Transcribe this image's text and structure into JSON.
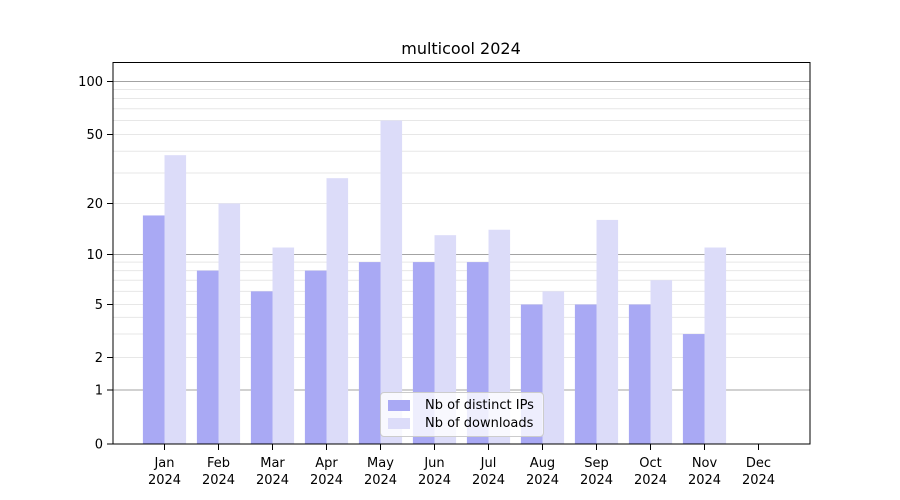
{
  "figure": {
    "title": "multicool 2024"
  },
  "chart_data": {
    "type": "bar",
    "title": "multicool 2024",
    "yscale": "symlog",
    "categories": [
      "Jan 2024",
      "Feb 2024",
      "Mar 2024",
      "Apr 2024",
      "May 2024",
      "Jun 2024",
      "Jul 2024",
      "Aug 2024",
      "Sep 2024",
      "Oct 2024",
      "Nov 2024",
      "Dec 2024"
    ],
    "series": [
      {
        "name": "Nb of distinct IPs",
        "color": "#a9a9f4",
        "values": [
          17,
          8,
          6,
          8,
          9,
          9,
          9,
          5,
          5,
          5,
          3,
          0
        ]
      },
      {
        "name": "Nb of downloads",
        "color": "#dcdcf9",
        "values": [
          38,
          20,
          11,
          28,
          60,
          13,
          14,
          6,
          16,
          7,
          11,
          0
        ]
      }
    ],
    "yticks_labeled": [
      0,
      1,
      2,
      5,
      10,
      20,
      50,
      100
    ],
    "yticks_minor": [
      3,
      4,
      6,
      7,
      8,
      9,
      30,
      40,
      60,
      70,
      80,
      90
    ],
    "ylim": [
      0,
      128
    ],
    "grid": true,
    "legend_position": "lower center"
  },
  "colors": {
    "background": "#ffffff",
    "axis": "#000000",
    "grid_major": "#a3a3a3",
    "grid_minor": "#e7e7e7",
    "tick_label": "#000000",
    "legend_border": "#cccccc",
    "legend_background": "rgba(255,255,255,0.8)"
  }
}
